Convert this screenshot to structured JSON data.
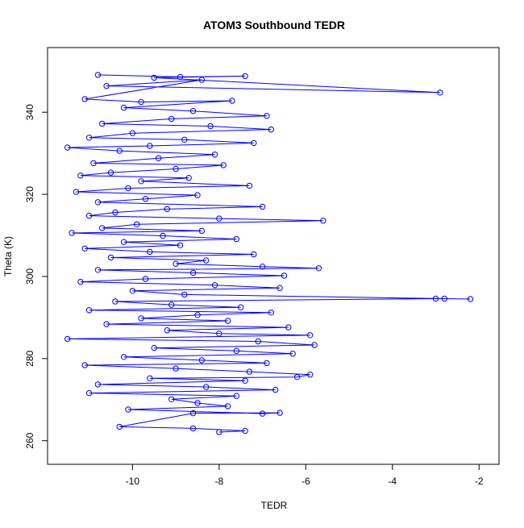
{
  "chart_data": {
    "type": "line",
    "title": "ATOM3 Southbound TEDR",
    "xlabel": "TEDR",
    "ylabel": "Theta (K)",
    "xlim": [
      -11.7,
      -1.8
    ],
    "ylim": [
      257,
      353
    ],
    "x_ticks": [
      -10,
      -8,
      -6,
      -4,
      -2
    ],
    "y_ticks": [
      260,
      280,
      300,
      320,
      340
    ],
    "grid": false,
    "legend": "none",
    "marker": "open-circle",
    "series_color": "#0000ff",
    "series": [
      {
        "points": [
          [
            -10.8,
            349.1
          ],
          [
            -8.9,
            348.6
          ],
          [
            -7.4,
            348.8
          ],
          [
            -9.5,
            348.4
          ],
          [
            -2.9,
            344.8
          ],
          [
            -10.6,
            346.4
          ],
          [
            -8.4,
            347.9
          ],
          [
            -11.1,
            343.2
          ],
          [
            -9.8,
            342.5
          ],
          [
            -7.7,
            342.8
          ],
          [
            -10.2,
            341.1
          ],
          [
            -8.6,
            340.3
          ],
          [
            -6.9,
            339.1
          ],
          [
            -9.1,
            338.4
          ],
          [
            -10.7,
            337.2
          ],
          [
            -8.2,
            336.6
          ],
          [
            -6.8,
            335.8
          ],
          [
            -10.0,
            334.9
          ],
          [
            -11.0,
            333.8
          ],
          [
            -8.8,
            333.3
          ],
          [
            -7.2,
            332.5
          ],
          [
            -9.6,
            331.8
          ],
          [
            -11.5,
            331.4
          ],
          [
            -10.3,
            330.6
          ],
          [
            -8.1,
            329.7
          ],
          [
            -9.4,
            328.8
          ],
          [
            -10.9,
            327.6
          ],
          [
            -7.9,
            327.1
          ],
          [
            -9.0,
            326.2
          ],
          [
            -10.5,
            325.3
          ],
          [
            -11.2,
            324.6
          ],
          [
            -8.7,
            324.0
          ],
          [
            -9.8,
            323.2
          ],
          [
            -7.3,
            322.1
          ],
          [
            -10.1,
            321.5
          ],
          [
            -11.3,
            320.6
          ],
          [
            -8.5,
            319.8
          ],
          [
            -9.7,
            318.9
          ],
          [
            -10.8,
            318.1
          ],
          [
            -7.0,
            317.0
          ],
          [
            -9.2,
            316.4
          ],
          [
            -10.4,
            315.6
          ],
          [
            -11.0,
            314.8
          ],
          [
            -8.0,
            314.1
          ],
          [
            -5.6,
            313.6
          ],
          [
            -9.9,
            312.7
          ],
          [
            -10.7,
            311.8
          ],
          [
            -8.4,
            311.1
          ],
          [
            -11.4,
            310.6
          ],
          [
            -9.3,
            309.9
          ],
          [
            -7.6,
            309.1
          ],
          [
            -10.2,
            308.4
          ],
          [
            -8.9,
            307.6
          ],
          [
            -11.1,
            306.8
          ],
          [
            -9.6,
            306.0
          ],
          [
            -7.2,
            305.4
          ],
          [
            -10.5,
            304.6
          ],
          [
            -8.3,
            303.9
          ],
          [
            -9.0,
            303.1
          ],
          [
            -7.0,
            302.4
          ],
          [
            -5.7,
            302.0
          ],
          [
            -10.8,
            301.6
          ],
          [
            -8.6,
            300.9
          ],
          [
            -6.5,
            300.2
          ],
          [
            -9.7,
            299.4
          ],
          [
            -11.2,
            298.7
          ],
          [
            -8.1,
            297.9
          ],
          [
            -6.6,
            297.2
          ],
          [
            -10.0,
            296.5
          ],
          [
            -8.8,
            295.6
          ],
          [
            -2.2,
            294.5
          ],
          [
            -2.8,
            294.6
          ],
          [
            -3.0,
            294.6
          ],
          [
            -10.4,
            293.9
          ],
          [
            -9.1,
            293.1
          ],
          [
            -7.5,
            292.5
          ],
          [
            -11.0,
            291.8
          ],
          [
            -6.8,
            291.2
          ],
          [
            -8.5,
            290.6
          ],
          [
            -9.8,
            289.8
          ],
          [
            -7.8,
            289.2
          ],
          [
            -10.6,
            288.4
          ],
          [
            -6.4,
            287.6
          ],
          [
            -9.2,
            286.9
          ],
          [
            -8.0,
            286.1
          ],
          [
            -5.9,
            285.7
          ],
          [
            -11.5,
            284.8
          ],
          [
            -7.1,
            284.2
          ],
          [
            -5.8,
            283.3
          ],
          [
            -9.5,
            282.6
          ],
          [
            -7.6,
            281.9
          ],
          [
            -6.3,
            281.2
          ],
          [
            -10.2,
            280.4
          ],
          [
            -8.4,
            279.6
          ],
          [
            -6.9,
            278.9
          ],
          [
            -11.1,
            278.4
          ],
          [
            -9.0,
            277.6
          ],
          [
            -7.3,
            276.8
          ],
          [
            -5.9,
            276.1
          ],
          [
            -6.2,
            275.5
          ],
          [
            -9.6,
            275.2
          ],
          [
            -7.4,
            274.6
          ],
          [
            -10.8,
            273.7
          ],
          [
            -8.3,
            273.1
          ],
          [
            -6.7,
            272.4
          ],
          [
            -11.0,
            271.6
          ],
          [
            -7.6,
            270.9
          ],
          [
            -9.1,
            270.1
          ],
          [
            -8.5,
            269.2
          ],
          [
            -7.8,
            268.4
          ],
          [
            -10.1,
            267.6
          ],
          [
            -7.0,
            266.6
          ],
          [
            -6.6,
            266.8
          ],
          [
            -8.6,
            266.7
          ],
          [
            -10.3,
            263.4
          ],
          [
            -8.6,
            263.0
          ],
          [
            -7.4,
            262.4
          ],
          [
            -8.0,
            262.1
          ]
        ]
      }
    ]
  }
}
